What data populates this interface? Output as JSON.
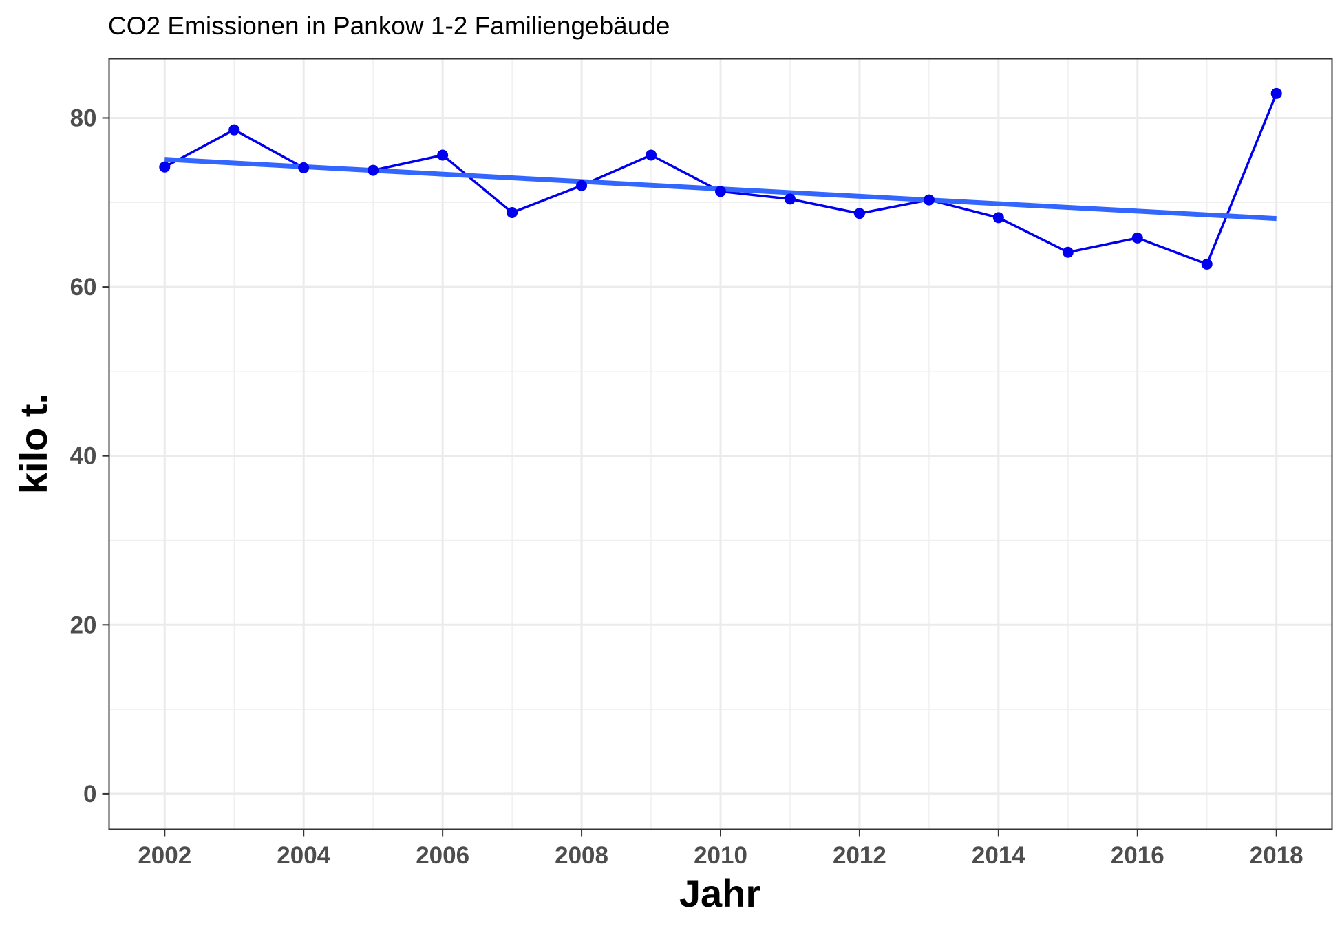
{
  "chart_data": {
    "type": "line",
    "title": "CO2 Emissionen in Pankow 1-2 Familiengebäude",
    "xlabel": "Jahr",
    "ylabel": "kilo t.",
    "xlim": [
      2001.2,
      2018.8
    ],
    "ylim": [
      -4.2,
      87
    ],
    "xticks": [
      2002,
      2004,
      2006,
      2008,
      2010,
      2012,
      2014,
      2016,
      2018
    ],
    "yticks": [
      0,
      20,
      40,
      60,
      80
    ],
    "grid": true,
    "legend": "none",
    "series": [
      {
        "x": [
          2002,
          2003,
          2004,
          2005,
          2006,
          2007,
          2008,
          2009,
          2010,
          2011,
          2012,
          2013,
          2014,
          2015,
          2016,
          2017,
          2018
        ],
        "y": [
          74.2,
          78.6,
          74.1,
          73.8,
          75.6,
          68.8,
          72.0,
          75.6,
          71.3,
          70.4,
          68.7,
          70.3,
          68.2,
          64.1,
          65.8,
          62.7,
          82.9
        ],
        "color": "#0000ee",
        "style": "line+points"
      },
      {
        "x": [
          2002,
          2018
        ],
        "y": [
          75.1,
          68.1
        ],
        "color": "#3366ff",
        "style": "trend"
      }
    ]
  }
}
